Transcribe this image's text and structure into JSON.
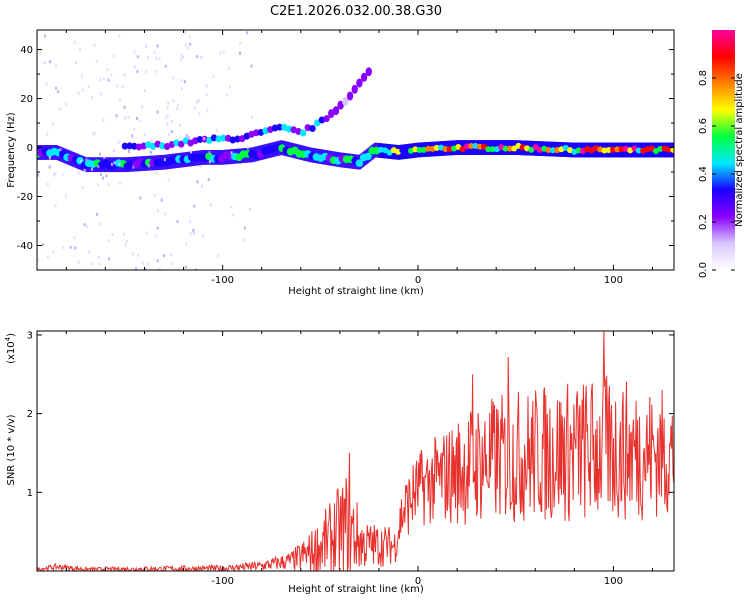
{
  "title": "C2E1.2026.032.00.38.G30",
  "colors": {
    "snr_line": "#e8312c",
    "axis": "#000000",
    "colorbar_stops": [
      "#ffffff",
      "#d8c8ff",
      "#8a00ff",
      "#1a00ff",
      "#00e8ff",
      "#00ff40",
      "#ffff00",
      "#ff8000",
      "#ff0000",
      "#ff00a0"
    ]
  },
  "chart_data": [
    {
      "type": "heatmap",
      "name": "spectrogram",
      "xlabel": "Height of straight line (km)",
      "ylabel": "Frequency (Hz)",
      "xlim": [
        -195,
        131
      ],
      "ylim": [
        -50,
        48
      ],
      "xticks": [
        -100,
        0,
        100
      ],
      "yticks": [
        -40,
        -20,
        0,
        20,
        40
      ],
      "xtick_labels": [
        "-100",
        "0",
        "100"
      ],
      "ytick_labels": [
        "-40",
        "-20",
        "0",
        "20",
        "40"
      ],
      "colorbar": {
        "label": "Normalized spectral amplitude",
        "range": [
          0,
          1
        ],
        "ticks": [
          0.0,
          0.2,
          0.4,
          0.6,
          0.8
        ],
        "tick_labels": [
          "0.0",
          "0.2",
          "0.4",
          "0.6",
          "0.8"
        ]
      },
      "ridges": [
        {
          "name": "lower-track",
          "points": [
            [
              -195,
              -2
            ],
            [
              -185,
              -2
            ],
            [
              -170,
              -7
            ],
            [
              -150,
              -7
            ],
            [
              -130,
              -6
            ],
            [
              -110,
              -4
            ],
            [
              -100,
              -4
            ],
            [
              -85,
              -3
            ],
            [
              -70,
              0
            ],
            [
              -55,
              -3
            ],
            [
              -40,
              -5
            ],
            [
              -30,
              -6
            ],
            [
              -22,
              -1
            ],
            [
              -10,
              -2
            ],
            [
              0,
              -1
            ],
            [
              20,
              0
            ],
            [
              50,
              0
            ],
            [
              80,
              -1
            ],
            [
              110,
              -1
            ],
            [
              131,
              -1
            ]
          ]
        },
        {
          "name": "upper-track",
          "points": [
            [
              -150,
              0
            ],
            [
              -130,
              1
            ],
            [
              -110,
              3
            ],
            [
              -90,
              4
            ],
            [
              -80,
              6
            ],
            [
              -70,
              8
            ],
            [
              -60,
              6
            ],
            [
              -50,
              10
            ],
            [
              -40,
              17
            ],
            [
              -30,
              26
            ],
            [
              -25,
              31
            ]
          ]
        }
      ]
    },
    {
      "type": "line",
      "name": "snr",
      "xlabel": "Height of straight line (km)",
      "ylabel": "SNR (10 * v/v)",
      "scale_label": "(x10",
      "scale_exponent": "4",
      "xlim": [
        -195,
        131
      ],
      "ylim": [
        0,
        3.05
      ],
      "xticks": [
        -100,
        0,
        100
      ],
      "yticks": [
        1,
        2,
        3
      ],
      "xtick_labels": [
        "-100",
        "0",
        "100"
      ],
      "ytick_labels": [
        "1",
        "2",
        "3"
      ],
      "envelope": [
        {
          "x": -195,
          "base": 0.02,
          "amp": 0.02
        },
        {
          "x": -185,
          "base": 0.05,
          "amp": 0.05
        },
        {
          "x": -170,
          "base": 0.02,
          "amp": 0.03
        },
        {
          "x": -100,
          "base": 0.03,
          "amp": 0.05
        },
        {
          "x": -80,
          "base": 0.06,
          "amp": 0.08
        },
        {
          "x": -65,
          "base": 0.12,
          "amp": 0.15
        },
        {
          "x": -55,
          "base": 0.2,
          "amp": 0.35
        },
        {
          "x": -45,
          "base": 0.35,
          "amp": 0.6
        },
        {
          "x": -36,
          "base": 0.5,
          "amp": 0.9
        },
        {
          "x": -28,
          "base": 0.3,
          "amp": 0.4
        },
        {
          "x": -12,
          "base": 0.3,
          "amp": 0.3
        },
        {
          "x": -8,
          "base": 0.7,
          "amp": 0.5
        },
        {
          "x": 0,
          "base": 1.0,
          "amp": 0.6
        },
        {
          "x": 15,
          "base": 1.15,
          "amp": 0.8
        },
        {
          "x": 30,
          "base": 1.3,
          "amp": 1.0
        },
        {
          "x": 60,
          "base": 1.4,
          "amp": 1.1
        },
        {
          "x": 95,
          "base": 1.45,
          "amp": 1.2
        },
        {
          "x": 131,
          "base": 1.4,
          "amp": 1.0
        }
      ],
      "peaks": [
        {
          "x": 95,
          "y": 3.05
        },
        {
          "x": 46,
          "y": 2.72
        },
        {
          "x": 28,
          "y": 2.5
        },
        {
          "x": 125,
          "y": 2.3
        },
        {
          "x": -35,
          "y": 1.5
        }
      ]
    }
  ]
}
